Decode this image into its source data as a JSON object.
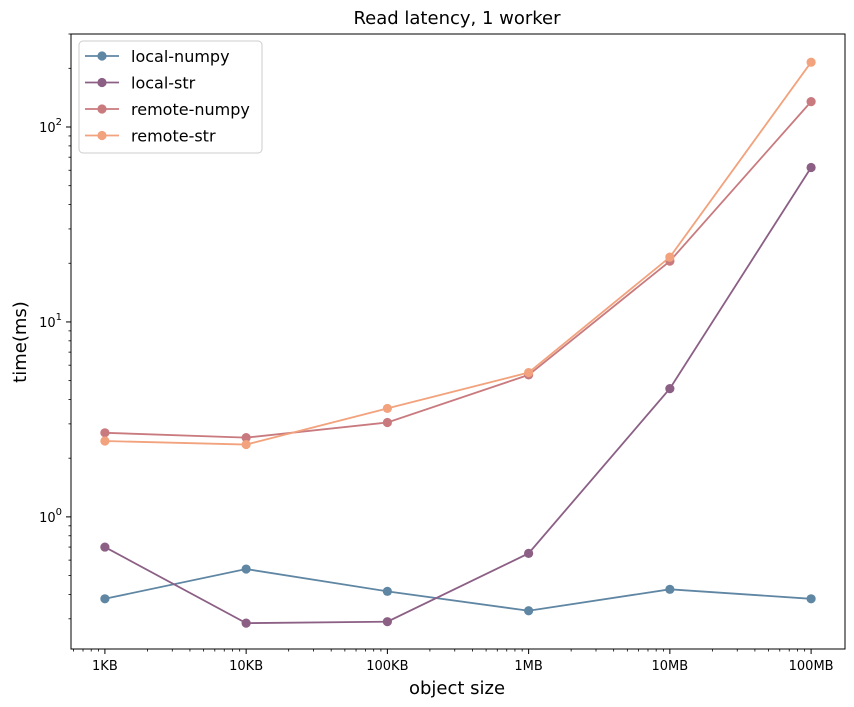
{
  "chart_data": {
    "type": "line",
    "title": "Read latency, 1 worker",
    "xlabel": "object size",
    "ylabel": "time(ms)",
    "x_scale": "log",
    "y_scale": "log",
    "categories": [
      "1KB",
      "10KB",
      "100KB",
      "1MB",
      "10MB",
      "100MB"
    ],
    "ylim": [
      0.21,
      300
    ],
    "y_ticks": [
      {
        "value": 1,
        "base": "10",
        "exp": "0"
      },
      {
        "value": 10,
        "base": "10",
        "exp": "1"
      },
      {
        "value": 100,
        "base": "10",
        "exp": "2"
      }
    ],
    "grid": false,
    "legend_position": "top-left",
    "series": [
      {
        "name": "local-numpy",
        "color": "#5f86a3",
        "values": [
          0.38,
          0.54,
          0.415,
          0.33,
          0.425,
          0.38
        ]
      },
      {
        "name": "local-str",
        "color": "#8c5f85",
        "values": [
          0.7,
          0.285,
          0.29,
          0.65,
          4.55,
          62
        ]
      },
      {
        "name": "remote-numpy",
        "color": "#c97a7e",
        "values": [
          2.7,
          2.55,
          3.05,
          5.35,
          20.5,
          135
        ]
      },
      {
        "name": "remote-str",
        "color": "#f2a27c",
        "values": [
          2.45,
          2.35,
          3.6,
          5.5,
          21.5,
          215
        ]
      }
    ]
  }
}
